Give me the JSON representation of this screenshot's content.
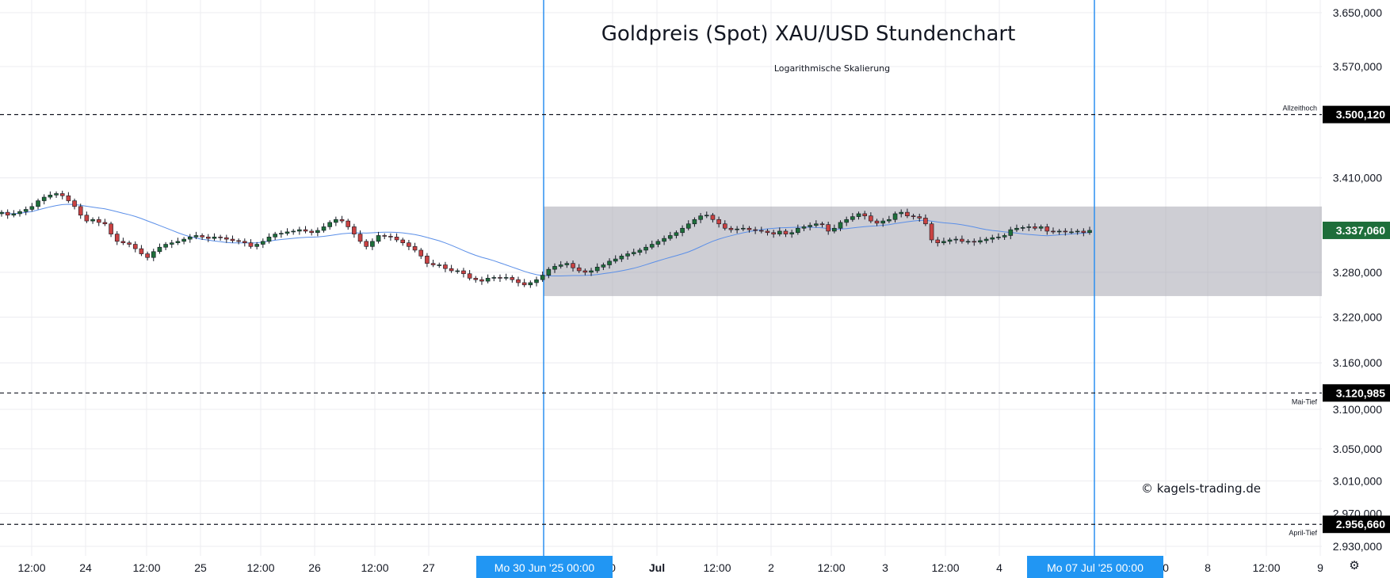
{
  "chart_data": {
    "type": "candlestick",
    "title": "Goldpreis (Spot) XAU/USD Stundenchart",
    "subtitle": "Logarithmische Skalierung",
    "watermark": "© kagels-trading.de",
    "log_scale": true,
    "grid": true,
    "y_ticks": [
      "3.650,000",
      "3.570,000",
      "3.410,000",
      "3.280,000",
      "3.220,000",
      "3.160,000",
      "3.100,000",
      "3.050,000",
      "3.010,000",
      "2.970,000",
      "2.930,000"
    ],
    "y_tick_values": [
      3650,
      3570,
      3410,
      3280,
      3220,
      3160,
      3100,
      3050,
      3010,
      2970,
      2930
    ],
    "x_ticks": [
      "12:00",
      "24",
      "12:00",
      "25",
      "12:00",
      "26",
      "12:00",
      "27",
      "0",
      "Jul",
      "12:00",
      "2",
      "12:00",
      "3",
      "12:00",
      "4",
      "0",
      "8",
      "12:00",
      "9"
    ],
    "x_tick_bold": [
      "Jul"
    ],
    "current_price": "3.337,060",
    "current_price_value": 3337.06,
    "horizontal_levels": [
      {
        "label": "Allzeithoch",
        "value": 3500.12,
        "value_text": "3.500,120"
      },
      {
        "label": "Mai-Tief",
        "value": 3120.985,
        "value_text": "3.120,985"
      },
      {
        "label": "April-Tief",
        "value": 2956.66,
        "value_text": "2.956,660"
      }
    ],
    "vertical_markers": [
      {
        "label": "Mo 30 Jun '25   00:00"
      },
      {
        "label": "Mo 07 Jul '25   00:00"
      }
    ],
    "range_box": {
      "from": "Mo 30 Jun '25   00:00",
      "to": "Mo 07 Jul '25   00:00",
      "high": 3370,
      "low": 3248
    },
    "candles_close": [
      3362,
      3358,
      3360,
      3363,
      3366,
      3370,
      3378,
      3383,
      3386,
      3388,
      3385,
      3378,
      3370,
      3358,
      3350,
      3352,
      3348,
      3346,
      3332,
      3322,
      3320,
      3318,
      3312,
      3305,
      3300,
      3308,
      3314,
      3318,
      3320,
      3322,
      3325,
      3328,
      3330,
      3328,
      3326,
      3328,
      3327,
      3325,
      3323,
      3322,
      3320,
      3315,
      3318,
      3322,
      3328,
      3332,
      3333,
      3335,
      3336,
      3338,
      3336,
      3334,
      3337,
      3342,
      3348,
      3352,
      3350,
      3342,
      3332,
      3322,
      3315,
      3322,
      3330,
      3329,
      3328,
      3324,
      3320,
      3315,
      3310,
      3302,
      3292,
      3290,
      3290,
      3285,
      3282,
      3282,
      3278,
      3272,
      3270,
      3268,
      3272,
      3273,
      3272,
      3273,
      3270,
      3266,
      3263,
      3266,
      3270,
      3276,
      3284,
      3288,
      3290,
      3292,
      3286,
      3282,
      3280,
      3282,
      3287,
      3290,
      3295,
      3298,
      3302,
      3305,
      3307,
      3310,
      3314,
      3318,
      3322,
      3326,
      3330,
      3334,
      3340,
      3346,
      3352,
      3357,
      3358,
      3352,
      3346,
      3340,
      3338,
      3339,
      3340,
      3338,
      3337,
      3336,
      3334,
      3332,
      3336,
      3332,
      3334,
      3340,
      3342,
      3344,
      3346,
      3345,
      3336,
      3340,
      3348,
      3352,
      3356,
      3360,
      3357,
      3350,
      3347,
      3350,
      3352,
      3360,
      3362,
      3357,
      3356,
      3354,
      3346,
      3324,
      3320,
      3322,
      3324,
      3325,
      3322,
      3322,
      3321,
      3323,
      3325,
      3327,
      3328,
      3330,
      3338,
      3340,
      3341,
      3342,
      3340,
      3342,
      3336,
      3335,
      3336,
      3335,
      3335,
      3336,
      3334,
      3337.06
    ]
  }
}
